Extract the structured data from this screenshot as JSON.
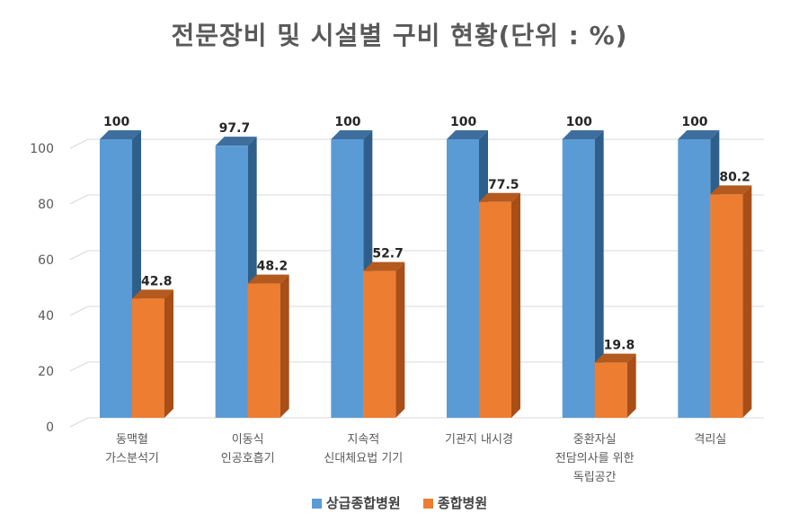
{
  "chart_data": {
    "type": "bar",
    "title": "전문장비 및 시설별 구비 현황(단위 : %)",
    "categories": [
      [
        "동맥혈",
        "가스분석기"
      ],
      [
        "이동식",
        "인공호흡기"
      ],
      [
        "지속적",
        "신대체요법 기기"
      ],
      [
        "기관지 내시경"
      ],
      [
        "중환자실",
        "전담의사를 위한",
        "독립공간"
      ],
      [
        "격리실"
      ]
    ],
    "series": [
      {
        "name": "상급종합병원",
        "values": [
          100,
          97.7,
          100,
          100,
          100,
          100
        ],
        "labels": [
          "100",
          "97.7",
          "100",
          "100",
          "100",
          "100"
        ]
      },
      {
        "name": "종합병원",
        "values": [
          42.8,
          48.2,
          52.7,
          77.5,
          19.8,
          80.2
        ],
        "labels": [
          "42.8",
          "48.2",
          "52.7",
          "77.5",
          "19.8",
          "80.2"
        ]
      }
    ],
    "ylim": [
      0,
      100
    ],
    "yticks": [
      "0",
      "20",
      "40",
      "60",
      "80",
      "100"
    ],
    "grid": true,
    "legend_position": "bottom",
    "colors": {
      "series1_front": "#5B9BD5",
      "series1_side": "#2E5F8A",
      "series1_top": "#3E6E9E",
      "series2_front": "#ED7D31",
      "series2_side": "#A84E17",
      "series2_top": "#B55A1E",
      "grid": "#D9D9D9",
      "axis_text": "#595959",
      "label_text": "#262626"
    }
  }
}
